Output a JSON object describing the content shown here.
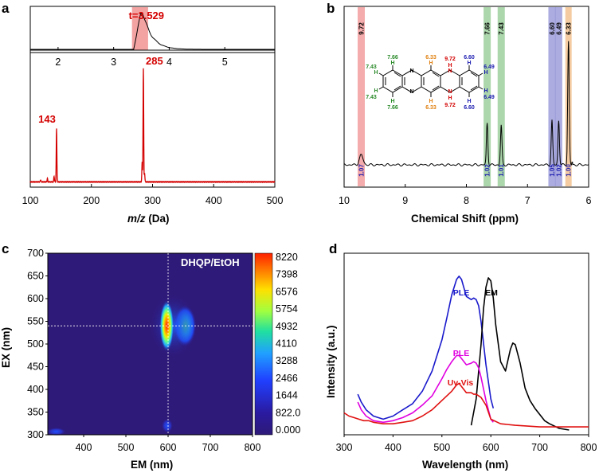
{
  "chart_data": [
    {
      "panel": "a",
      "type": "line",
      "inset": {
        "x_ticks": [
          2,
          3,
          4,
          5
        ],
        "xlim": [
          1.5,
          5.9
        ],
        "retention_label": "t=3.529",
        "highlight_range": [
          3.33,
          3.62
        ],
        "peak_time": 3.529
      },
      "main": {
        "xlabel_italic": "m/z",
        "xlabel_unit": " (Da)",
        "x_ticks": [
          100,
          200,
          300,
          400,
          500
        ],
        "xlim": [
          100,
          500
        ],
        "color": "#d40000",
        "peaks": [
          {
            "mz": 117,
            "rel": 0.02
          },
          {
            "mz": 128,
            "rel": 0.03
          },
          {
            "mz": 139,
            "rel": 0.05
          },
          {
            "mz": 143,
            "rel": 0.47
          },
          {
            "mz": 283,
            "rel": 0.18
          },
          {
            "mz": 285,
            "rel": 1.0
          },
          {
            "mz": 287,
            "rel": 0.08
          }
        ],
        "peak_labels": [
          {
            "mz": 143,
            "text": "143"
          },
          {
            "mz": 285,
            "text": "285"
          }
        ]
      }
    },
    {
      "panel": "b",
      "type": "line",
      "xlabel": "Chemical Shift (ppm)",
      "x_ticks": [
        10,
        9,
        8,
        7,
        6
      ],
      "xlim": [
        10,
        6
      ],
      "peaks": [
        {
          "ppm": 9.72,
          "h": 0.08,
          "band": "#f08080",
          "label_color": "#000000",
          "integral": "1.07",
          "integral_color": "#1a1ab0"
        },
        {
          "ppm": 7.66,
          "h": 0.34,
          "band": "#80c080",
          "label_color": "#000000",
          "integral": "1.02",
          "integral_color": "#1a1ab0"
        },
        {
          "ppm": 7.43,
          "h": 0.32,
          "band": "#80c080",
          "label_color": "#000000",
          "integral": "1.01",
          "integral_color": "#1a1ab0"
        },
        {
          "ppm": 6.6,
          "h": 0.36,
          "band": "#8080d0",
          "label_color": "#000000",
          "integral": "1.05",
          "integral_color": "#1a1ab0"
        },
        {
          "ppm": 6.49,
          "h": 0.36,
          "band": "#8080d0",
          "label_color": "#000000",
          "integral": "1.02",
          "integral_color": "#1a1ab0"
        },
        {
          "ppm": 6.33,
          "h": 1.0,
          "band": "#f0b070",
          "label_color": "#000000",
          "integral": "1.00",
          "integral_color": "#1a1ab0"
        }
      ],
      "peak_labels": [
        "9.72",
        "7.66",
        "7.43",
        "6.60",
        "6.49",
        "6.33"
      ],
      "structure_labels": {
        "h": "H",
        "nh": "N\nH",
        "s766": "7.66",
        "s743": "7.43",
        "s633": "6.33",
        "s972": "9.72",
        "s660": "6.60",
        "s649": "6.49"
      }
    },
    {
      "panel": "c",
      "type": "heatmap",
      "title": "DHQP/EtOH",
      "xlabel": "EM (nm)",
      "ylabel": "EX (nm)",
      "x_ticks": [
        400,
        500,
        600,
        700,
        800
      ],
      "y_ticks": [
        300,
        350,
        400,
        450,
        500,
        550,
        600,
        650,
        700
      ],
      "xlim": [
        315,
        800
      ],
      "ylim": [
        300,
        700
      ],
      "crosshair": {
        "em": 600,
        "ex": 540
      },
      "colorbar_ticks": [
        "8220",
        "7398",
        "6576",
        "5754",
        "4932",
        "4110",
        "3288",
        "2466",
        "1644",
        "822.0",
        "0.000"
      ],
      "colorbar_colors": [
        "#ff2000",
        "#ff8000",
        "#ffe000",
        "#a0ff40",
        "#20e0a0",
        "#20a0ff",
        "#2040ff",
        "#2a1aa0",
        "#2e1a78"
      ],
      "hotspots": [
        {
          "em": 597,
          "ex": 540,
          "value": 8220
        },
        {
          "em": 640,
          "ex": 540,
          "value": 3900
        },
        {
          "em": 598,
          "ex": 320,
          "value": 1300
        },
        {
          "em": 335,
          "ex": 307,
          "value": 1000
        }
      ]
    },
    {
      "panel": "d",
      "type": "line",
      "xlabel": "Wavelength (nm)",
      "ylabel": "Intensity (a.u.)",
      "x_ticks": [
        300,
        400,
        500,
        600,
        700,
        800
      ],
      "xlim": [
        300,
        800
      ],
      "series": [
        {
          "name": "PLE",
          "color": "#1a1acc",
          "x": [
            328,
            335,
            345,
            360,
            380,
            400,
            420,
            440,
            460,
            480,
            500,
            510,
            520,
            530,
            535,
            540,
            550,
            560,
            565,
            570,
            575,
            580,
            590,
            600,
            605
          ],
          "y": [
            0.23,
            0.18,
            0.13,
            0.09,
            0.07,
            0.09,
            0.13,
            0.17,
            0.25,
            0.38,
            0.58,
            0.72,
            0.87,
            0.97,
            0.99,
            0.97,
            0.86,
            0.84,
            0.85,
            0.84,
            0.8,
            0.7,
            0.42,
            0.2,
            0.14
          ]
        },
        {
          "name": "EM",
          "color": "#000000",
          "x": [
            560,
            570,
            580,
            585,
            590,
            595,
            600,
            605,
            610,
            620,
            630,
            640,
            645,
            650,
            660,
            670,
            680,
            690,
            700,
            710,
            720,
            740,
            760
          ],
          "y": [
            0.03,
            0.2,
            0.55,
            0.78,
            0.92,
            0.98,
            0.96,
            0.85,
            0.68,
            0.44,
            0.38,
            0.52,
            0.56,
            0.55,
            0.43,
            0.27,
            0.19,
            0.14,
            0.1,
            0.06,
            0.04,
            0.01,
            0.0
          ]
        },
        {
          "name": "PLE",
          "color": "#e000e0",
          "x": [
            328,
            335,
            345,
            360,
            380,
            400,
            420,
            440,
            460,
            480,
            500,
            510,
            520,
            530,
            535,
            540,
            550,
            560,
            565,
            570,
            575,
            580,
            590,
            600,
            605
          ],
          "y": [
            0.18,
            0.13,
            0.09,
            0.06,
            0.05,
            0.06,
            0.08,
            0.11,
            0.16,
            0.22,
            0.33,
            0.39,
            0.44,
            0.48,
            0.48,
            0.46,
            0.42,
            0.43,
            0.44,
            0.43,
            0.4,
            0.34,
            0.19,
            0.07,
            0.05
          ]
        },
        {
          "name": "Uv-Vis",
          "color": "#e01010",
          "x": [
            300,
            310,
            320,
            330,
            340,
            350,
            360,
            380,
            400,
            420,
            440,
            460,
            480,
            500,
            520,
            530,
            535,
            540,
            550,
            560,
            565,
            570,
            580,
            590,
            600,
            620,
            650,
            700,
            750,
            800
          ],
          "y": [
            0.11,
            0.09,
            0.08,
            0.07,
            0.06,
            0.06,
            0.05,
            0.04,
            0.04,
            0.05,
            0.06,
            0.09,
            0.13,
            0.19,
            0.25,
            0.29,
            0.3,
            0.28,
            0.24,
            0.24,
            0.23,
            0.23,
            0.21,
            0.16,
            0.07,
            0.04,
            0.03,
            0.02,
            0.02,
            0.02
          ]
        }
      ],
      "series_labels": [
        {
          "text": "PLE",
          "color": "#1a1acc"
        },
        {
          "text": "EM",
          "color": "#000000"
        },
        {
          "text": "PLE",
          "color": "#e000e0"
        },
        {
          "text": "Uv-Vis",
          "color": "#e01010"
        }
      ]
    }
  ],
  "panel_letters": [
    "a",
    "b",
    "c",
    "d"
  ]
}
